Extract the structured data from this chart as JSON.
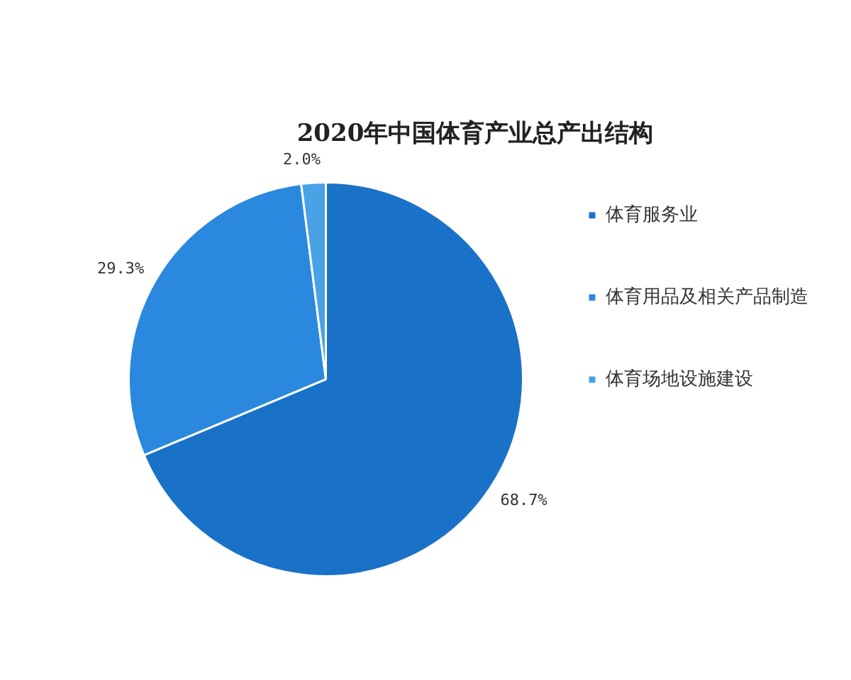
{
  "chart_data": {
    "type": "pie",
    "title": "2020年中国体育产业总产出结构",
    "categories": [
      "体育服务业",
      "体育用品及相关产品制造",
      "体育场地设施建设"
    ],
    "values": [
      68.7,
      29.3,
      2.0
    ],
    "value_labels": [
      "68.7%",
      "29.3%",
      "2.0%"
    ],
    "colors": [
      "#1a72c8",
      "#2a88de",
      "#4aa2e6"
    ],
    "legend": "right"
  }
}
